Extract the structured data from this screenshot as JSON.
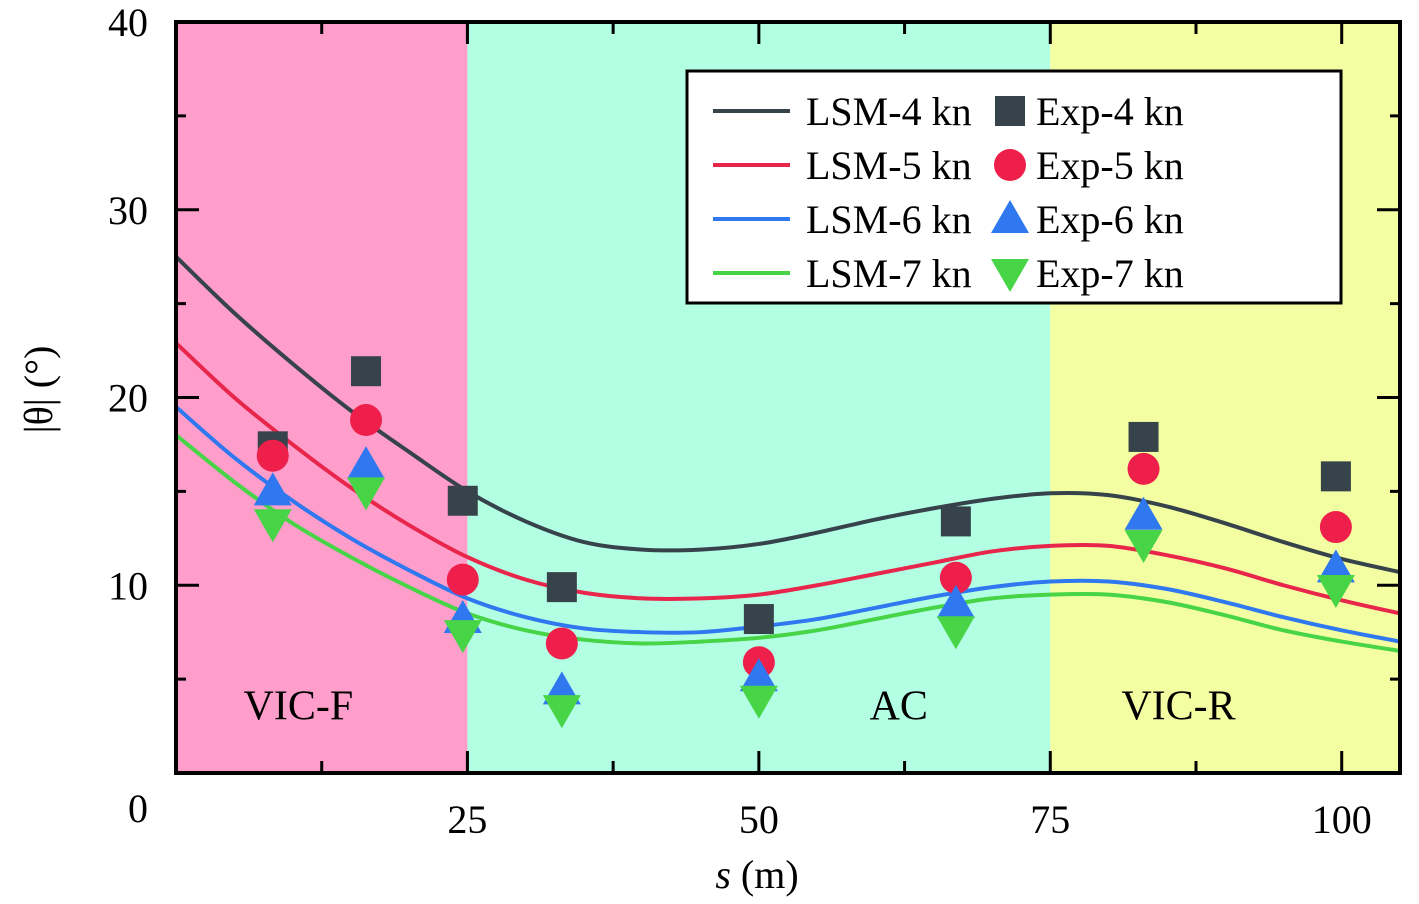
{
  "chart_data": {
    "type": "line",
    "title": "",
    "xlabel": "s (m)",
    "xlabel_var": "s",
    "xlabel_unit": " (m)",
    "ylabel": "|θ| (°)",
    "xlim": [
      0,
      105
    ],
    "ylim": [
      0,
      40
    ],
    "x_ticks": [
      0,
      25,
      50,
      75,
      100
    ],
    "x_tick_labels": [
      "0",
      "25",
      "50",
      "75",
      "100"
    ],
    "x_minor_ticks": [
      12.5,
      37.5,
      62.5,
      87.5
    ],
    "y_ticks": [
      10,
      20,
      30,
      40
    ],
    "y_tick_labels": [
      "10",
      "20",
      "30",
      "40"
    ],
    "y_minor_ticks": [
      5,
      15,
      25,
      35
    ],
    "origin_label": "0",
    "grid": false,
    "legend_position": "top-right",
    "regions": [
      {
        "label": "VIC-F",
        "x_range": [
          0,
          25
        ],
        "color": "#ff9ecb",
        "label_x": 10.5,
        "label_y": 3.6
      },
      {
        "label": "AC",
        "x_range": [
          25,
          75
        ],
        "color": "#b3ffe4",
        "label_x": 62,
        "label_y": 3.6
      },
      {
        "label": "VIC-R",
        "x_range": [
          75,
          105
        ],
        "color": "#f3fea2",
        "label_x": 86,
        "label_y": 3.6
      }
    ],
    "curve_x": [
      0,
      5,
      10,
      15,
      20,
      25,
      30,
      35,
      40,
      45,
      50,
      55,
      60,
      65,
      70,
      75,
      80,
      85,
      90,
      95,
      100,
      105
    ],
    "series": [
      {
        "name": "LSM-4 kn",
        "kind": "line",
        "color": "#37434a",
        "values": [
          27.5,
          24.5,
          21.8,
          19.3,
          17.1,
          15.0,
          13.4,
          12.3,
          11.9,
          11.9,
          12.2,
          12.8,
          13.5,
          14.1,
          14.6,
          14.9,
          14.8,
          14.2,
          13.3,
          12.3,
          11.4,
          10.7
        ]
      },
      {
        "name": "LSM-5 kn",
        "kind": "line",
        "color": "#e8264c",
        "values": [
          22.9,
          20.0,
          17.5,
          15.2,
          13.2,
          11.5,
          10.3,
          9.6,
          9.3,
          9.3,
          9.5,
          10.0,
          10.6,
          11.2,
          11.8,
          12.1,
          12.1,
          11.6,
          10.9,
          10.0,
          9.2,
          8.5
        ]
      },
      {
        "name": "LSM-6 kn",
        "kind": "line",
        "color": "#2f78f0",
        "values": [
          19.5,
          16.8,
          14.5,
          12.5,
          10.8,
          9.3,
          8.3,
          7.7,
          7.5,
          7.5,
          7.8,
          8.2,
          8.8,
          9.4,
          9.9,
          10.2,
          10.2,
          9.8,
          9.1,
          8.3,
          7.6,
          7.0
        ]
      },
      {
        "name": "LSM-7 kn",
        "kind": "line",
        "color": "#47d447",
        "values": [
          18.0,
          15.5,
          13.3,
          11.5,
          9.9,
          8.5,
          7.6,
          7.1,
          6.9,
          7.0,
          7.2,
          7.6,
          8.2,
          8.8,
          9.3,
          9.5,
          9.5,
          9.1,
          8.4,
          7.6,
          7.0,
          6.5
        ]
      },
      {
        "name": "Exp-4 kn",
        "kind": "scatter",
        "marker": "square",
        "color": "#37434a",
        "x": [
          8.3,
          16.3,
          24.6,
          33.1,
          50.0,
          66.9,
          83.0,
          99.5
        ],
        "values": [
          17.4,
          21.4,
          14.5,
          9.9,
          8.2,
          13.4,
          17.9,
          15.8
        ]
      },
      {
        "name": "Exp-5 kn",
        "kind": "scatter",
        "marker": "circle",
        "color": "#ee1f4b",
        "x": [
          8.3,
          16.3,
          24.6,
          33.1,
          50.0,
          66.9,
          83.0,
          99.5
        ],
        "values": [
          16.9,
          18.8,
          10.3,
          6.9,
          5.9,
          10.4,
          16.2,
          13.1
        ]
      },
      {
        "name": "Exp-6 kn",
        "kind": "scatter",
        "marker": "triangle-up",
        "color": "#2f78f0",
        "x": [
          8.3,
          16.3,
          24.6,
          33.1,
          50.0,
          66.9,
          83.0,
          99.5
        ],
        "values": [
          15.0,
          16.4,
          8.2,
          4.4,
          5.1,
          9.0,
          13.7,
          10.9
        ]
      },
      {
        "name": "Exp-7 kn",
        "kind": "scatter",
        "marker": "triangle-down",
        "color": "#47d447",
        "x": [
          8.3,
          16.3,
          24.6,
          33.1,
          50.0,
          66.9,
          83.0,
          99.5
        ],
        "values": [
          13.3,
          15.0,
          7.4,
          3.4,
          3.9,
          7.6,
          12.2,
          9.8
        ]
      }
    ]
  }
}
